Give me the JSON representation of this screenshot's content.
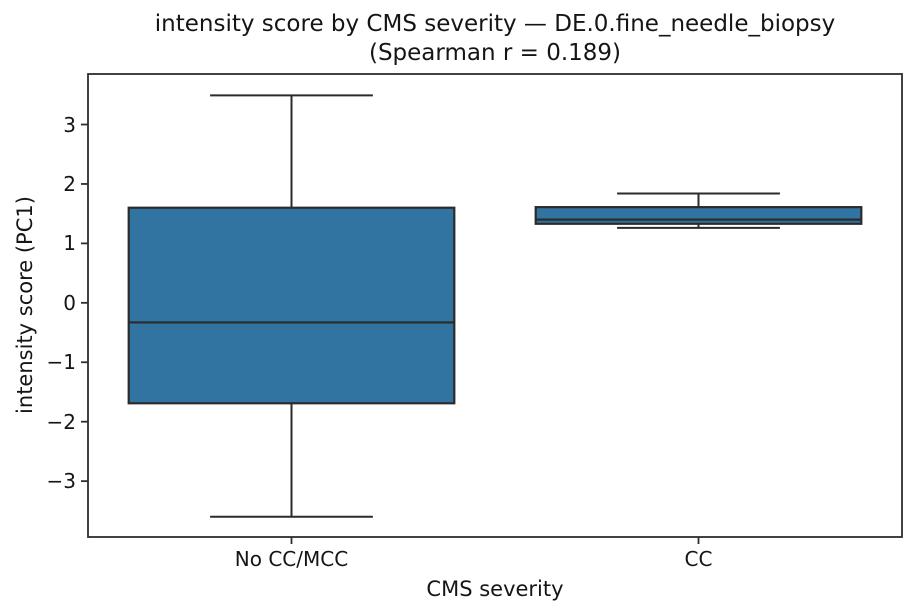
{
  "chart_data": {
    "type": "box",
    "title": "intensity score by CMS severity — DE.0.fine_needle_biopsy",
    "subtitle": "(Spearman r = 0.189)",
    "xlabel": "CMS severity",
    "ylabel": "intensity score (PC1)",
    "categories": [
      "No CC/MCC",
      "CC"
    ],
    "ylim": [
      -3.94,
      3.85
    ],
    "yticks": [
      {
        "label": "3",
        "value": 3
      },
      {
        "label": "2",
        "value": 2
      },
      {
        "label": "1",
        "value": 1
      },
      {
        "label": "0",
        "value": 0
      },
      {
        "label": "−1",
        "value": -1
      },
      {
        "label": "−2",
        "value": -2
      },
      {
        "label": "−3",
        "value": -3
      }
    ],
    "series": [
      {
        "category": "No CC/MCC",
        "whisker_low": -3.6,
        "q1": -1.69,
        "median": -0.33,
        "q3": 1.6,
        "whisker_high": 3.49
      },
      {
        "category": "CC",
        "whisker_low": 1.26,
        "q1": 1.33,
        "median": 1.4,
        "q3": 1.61,
        "whisker_high": 1.84
      }
    ],
    "grid": false,
    "legend": "none",
    "colors": {
      "box_fill": "#3274a1",
      "box_edge": "#2b2b2b",
      "axis": "#2e2e2e",
      "text": "#151515",
      "background": "#ffffff"
    }
  }
}
